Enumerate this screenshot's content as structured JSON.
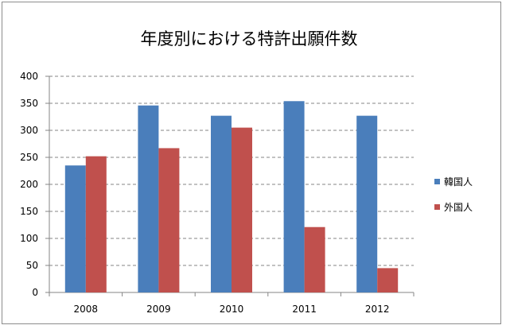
{
  "chart_data": {
    "type": "bar",
    "title": "年度別における特許出願件数",
    "xlabel": "",
    "ylabel": "",
    "categories": [
      "2008",
      "2009",
      "2010",
      "2011",
      "2012"
    ],
    "series": [
      {
        "name": "韓国人",
        "color": "#4a7ebb",
        "values": [
          235,
          346,
          327,
          354,
          327
        ]
      },
      {
        "name": "外国人",
        "color": "#c0504d",
        "values": [
          252,
          267,
          305,
          121,
          45
        ]
      }
    ],
    "ylim": [
      0,
      400
    ],
    "yticks": [
      "0",
      "50",
      "100",
      "150",
      "200",
      "250",
      "300",
      "350",
      "400"
    ],
    "grid": true,
    "legend_position": "right"
  }
}
